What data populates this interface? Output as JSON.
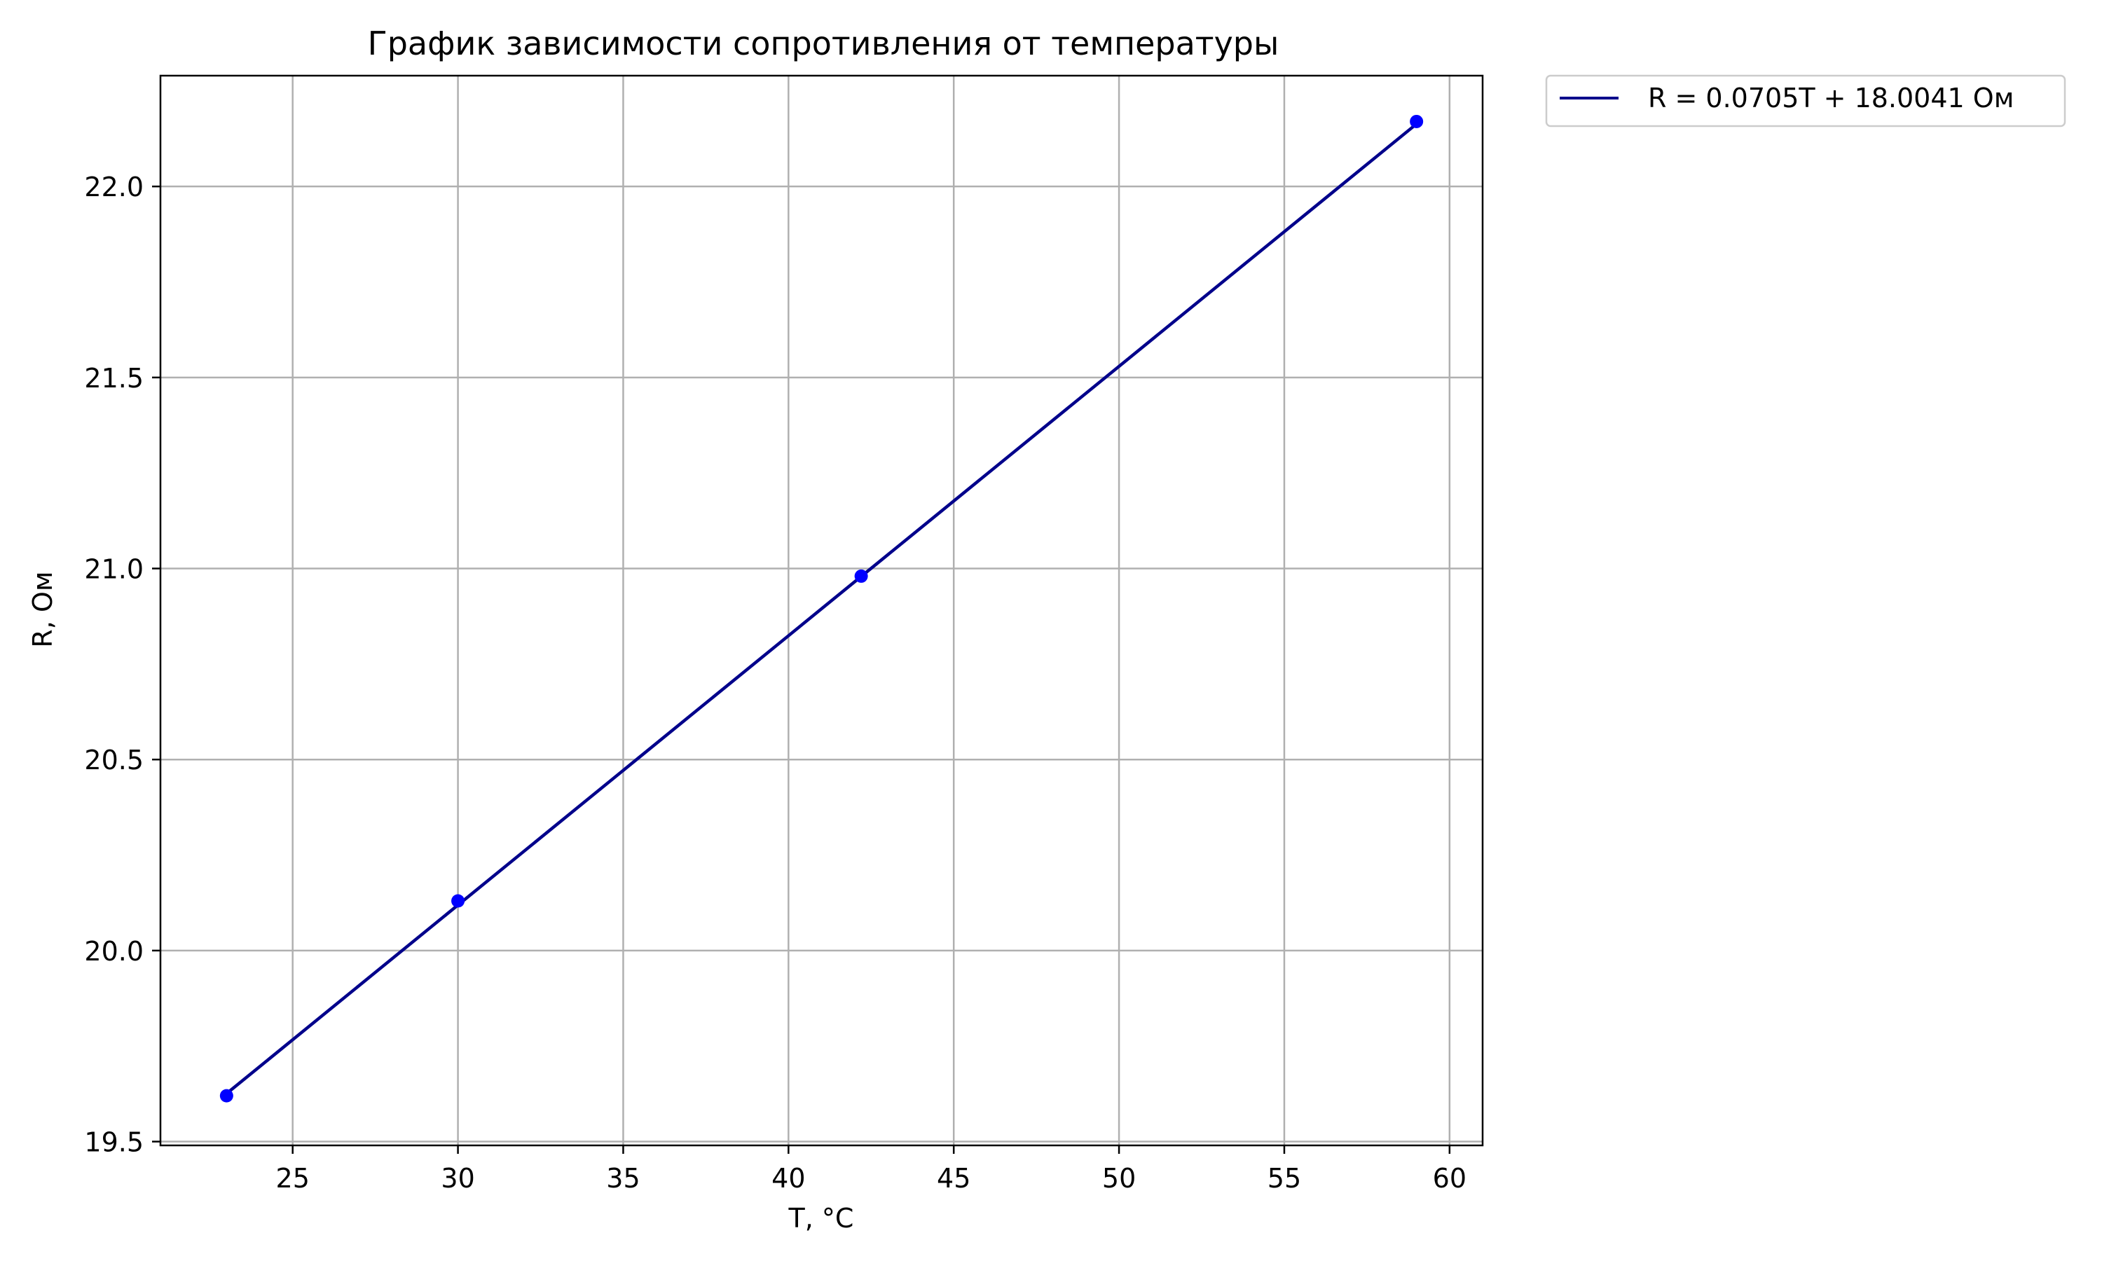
{
  "chart_data": {
    "type": "line",
    "title": "График зависимости сопротивления от температуры",
    "xlabel": "T, °C",
    "ylabel": "R, Ом",
    "xlim": [
      21,
      61
    ],
    "ylim": [
      19.49,
      22.29
    ],
    "xticks": [
      25,
      30,
      35,
      40,
      45,
      50,
      55,
      60
    ],
    "yticks": [
      19.5,
      20.0,
      20.5,
      21.0,
      21.5,
      22.0
    ],
    "xtick_labels": [
      "25",
      "30",
      "35",
      "40",
      "45",
      "50",
      "55",
      "60"
    ],
    "ytick_labels": [
      "19.5",
      "20.0",
      "20.5",
      "21.0",
      "21.5",
      "22.0"
    ],
    "grid": true,
    "legend_position": "outside-top-right",
    "series": [
      {
        "name": "R = 0.0705T + 18.0041 Ом",
        "kind": "line",
        "color": "#00008b",
        "x": [
          23,
          59
        ],
        "y": [
          19.6256,
          22.1636
        ]
      },
      {
        "kind": "scatter",
        "color": "#0000ff",
        "x": [
          23,
          30,
          42.2,
          59
        ],
        "y": [
          19.62,
          20.13,
          20.98,
          22.17
        ]
      }
    ]
  }
}
